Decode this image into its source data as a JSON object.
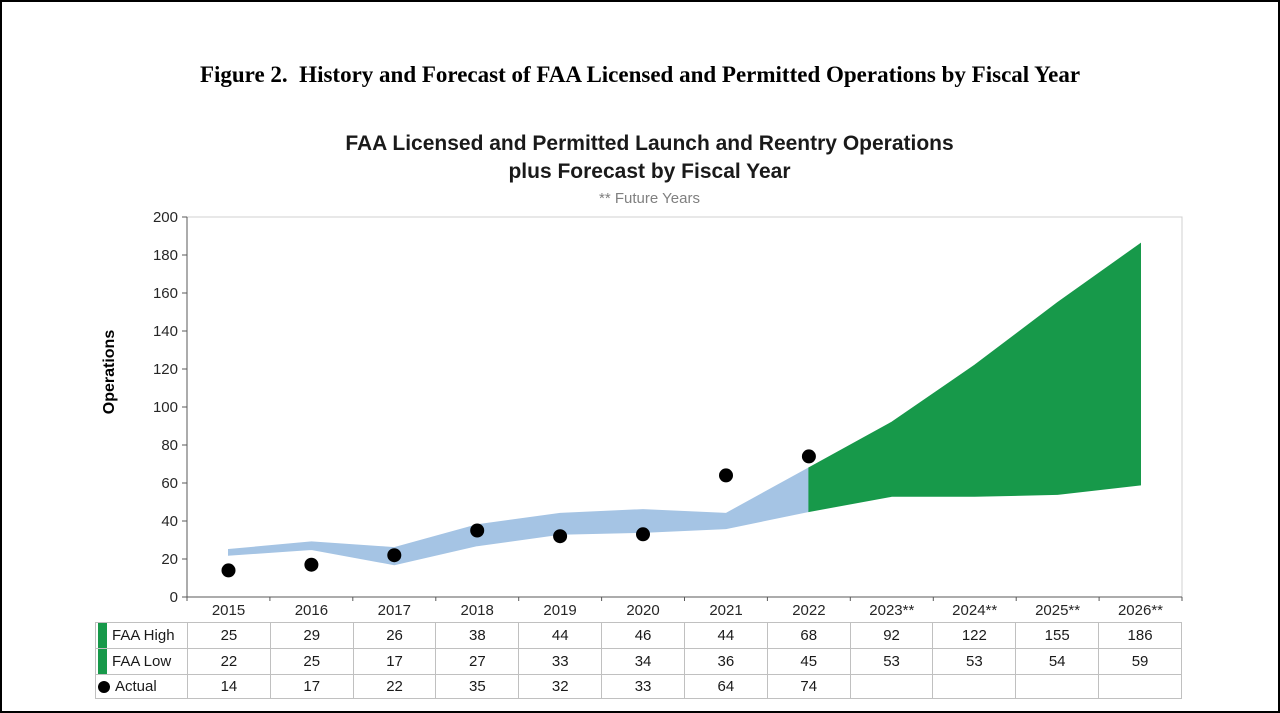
{
  "figure": {
    "caption": "Figure 2.  History and Forecast of FAA Licensed and Permitted Operations by Fiscal Year"
  },
  "chart_data": {
    "type": "area",
    "title": "FAA Licensed and Permitted Launch and Reentry Operations",
    "title_line2": "plus Forecast by Fiscal Year",
    "note": "** Future Years",
    "ylabel": "Operations",
    "xlabel": "",
    "ylim": [
      0,
      200
    ],
    "yticks": [
      0,
      20,
      40,
      60,
      80,
      100,
      120,
      140,
      160,
      180,
      200
    ],
    "grid": false,
    "legend_position": "table-left",
    "forecast_start_index": 7,
    "categories": [
      "2015",
      "2016",
      "2017",
      "2018",
      "2019",
      "2020",
      "2021",
      "2022",
      "2023**",
      "2024**",
      "2025**",
      "2026**"
    ],
    "series": [
      {
        "name": "FAA High",
        "marker": "band",
        "values": [
          25,
          29,
          26,
          38,
          44,
          46,
          44,
          68,
          92,
          122,
          155,
          186
        ]
      },
      {
        "name": "FAA Low",
        "marker": "band",
        "values": [
          22,
          25,
          17,
          27,
          33,
          34,
          36,
          45,
          53,
          53,
          54,
          59
        ]
      },
      {
        "name": "Actual",
        "marker": "dot",
        "values": [
          14,
          17,
          22,
          35,
          32,
          33,
          64,
          74,
          null,
          null,
          null,
          null
        ]
      }
    ],
    "colors": {
      "history_band": "#a5c4e4",
      "forecast_band": "#17994a",
      "actual": "#000000",
      "axis": "#595959",
      "plot_border": "#d0d0d0",
      "table_border": "#c0c0c0"
    }
  }
}
